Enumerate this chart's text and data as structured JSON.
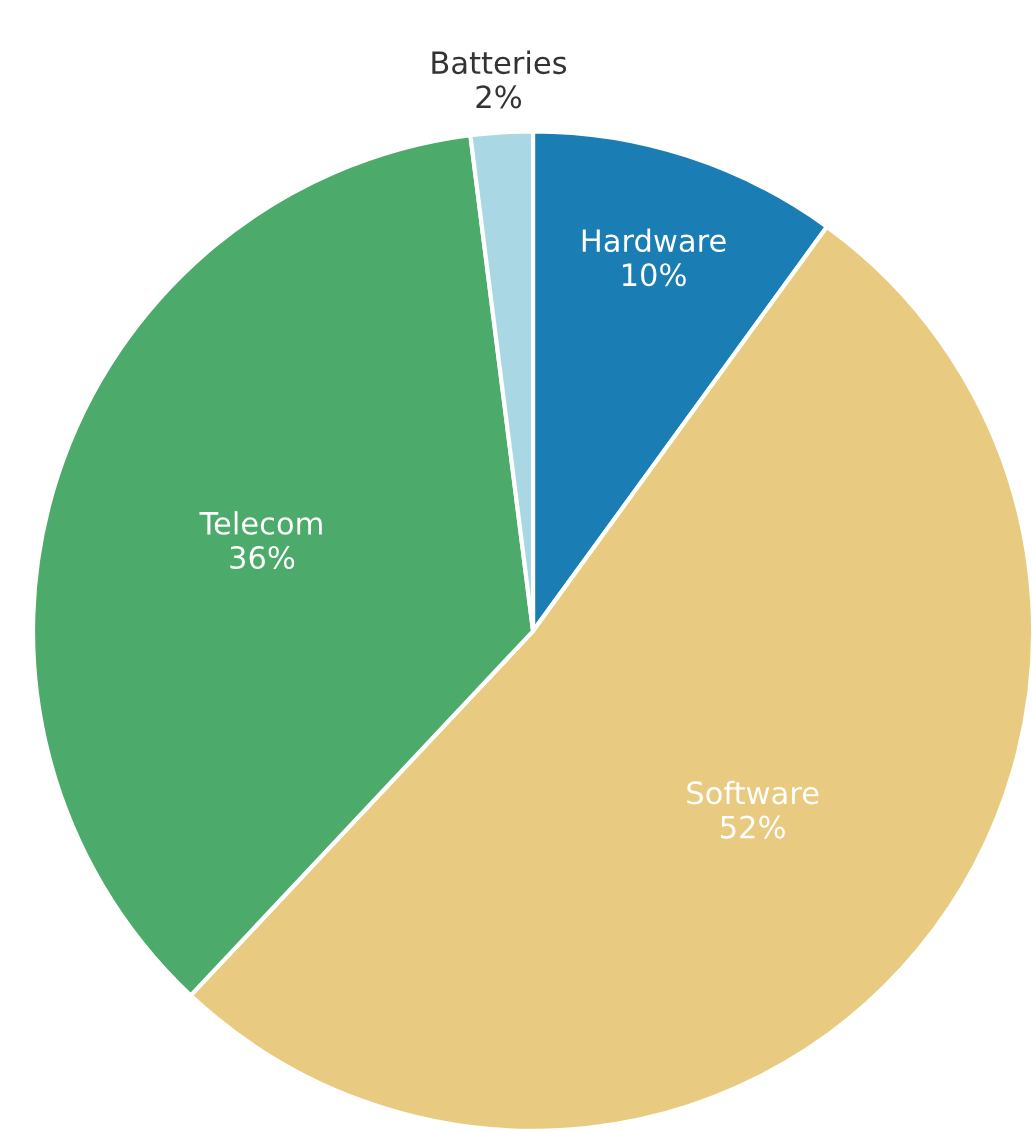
{
  "chart_data": {
    "type": "pie",
    "categories": [
      "Hardware",
      "Software",
      "Telecom",
      "Batteries"
    ],
    "values": [
      10,
      52,
      36,
      2
    ],
    "value_labels": [
      "10%",
      "52%",
      "36%",
      "2%"
    ],
    "colors": [
      "#1a7db3",
      "#e8cb80",
      "#4caa6b",
      "#a9d8e4"
    ],
    "legend": false
  }
}
